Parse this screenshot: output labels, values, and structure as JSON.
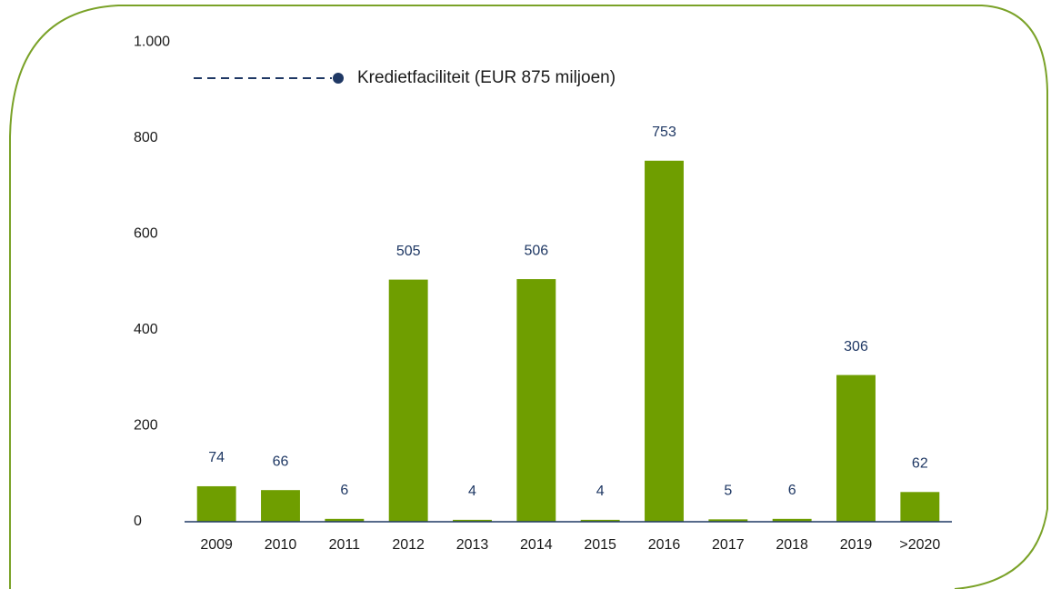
{
  "chart_data": {
    "type": "bar",
    "categories": [
      "2009",
      "2010",
      "2011",
      "2012",
      "2013",
      "2014",
      "2015",
      "2016",
      "2017",
      "2018",
      "2019",
      ">2020"
    ],
    "values": [
      74,
      66,
      6,
      505,
      4,
      506,
      4,
      753,
      5,
      6,
      306,
      62
    ],
    "color": "#6f9e00",
    "ylim": [
      0,
      1000
    ],
    "yticks": [
      0,
      200,
      400,
      600,
      800,
      {
        "value": 1000,
        "label": "1.000"
      }
    ],
    "legend": {
      "label": "Kredietfaciliteit (EUR 875 miljoen)",
      "color": "#1f3864"
    }
  }
}
